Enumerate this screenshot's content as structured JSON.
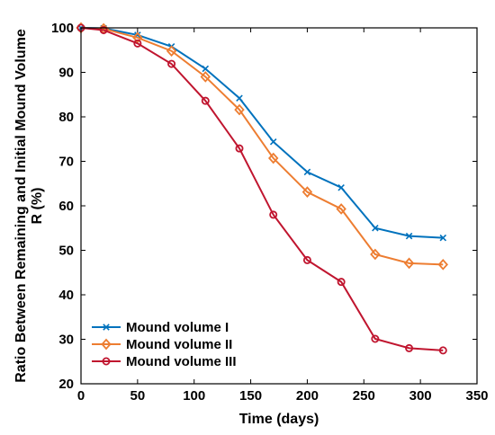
{
  "chart_data": {
    "type": "line",
    "title": "",
    "xlabel": "Time (days)",
    "ylabel_line1": "Ratio Between Remaining and Initial Mound Volume",
    "ylabel_line2": "R (%)",
    "xlim": [
      0,
      350
    ],
    "ylim": [
      20,
      100
    ],
    "xticks": [
      0,
      50,
      100,
      150,
      200,
      250,
      300,
      350
    ],
    "yticks": [
      20,
      30,
      40,
      50,
      60,
      70,
      80,
      90,
      100
    ],
    "grid": false,
    "legend_position": "bottom-left",
    "x": [
      0,
      20,
      50,
      80,
      110,
      140,
      170,
      200,
      230,
      260,
      290,
      320
    ],
    "series": [
      {
        "name": "Mound volume I",
        "color": "#0072BD",
        "marker": "x",
        "values": [
          100,
          99.9,
          98.4,
          95.8,
          90.8,
          84.2,
          74.4,
          67.6,
          64.1,
          55.0,
          53.2,
          52.8
        ]
      },
      {
        "name": "Mound volume II",
        "color": "#ED7D31",
        "marker": "diamond",
        "values": [
          100,
          99.8,
          97.8,
          94.8,
          89.0,
          81.6,
          70.7,
          63.1,
          59.3,
          49.1,
          47.1,
          46.8
        ]
      },
      {
        "name": "Mound volume III",
        "color": "#C0152F",
        "marker": "circle",
        "values": [
          100,
          99.5,
          96.5,
          91.9,
          83.6,
          72.9,
          58.0,
          47.8,
          42.9,
          30.1,
          28.0,
          27.5
        ]
      }
    ]
  }
}
